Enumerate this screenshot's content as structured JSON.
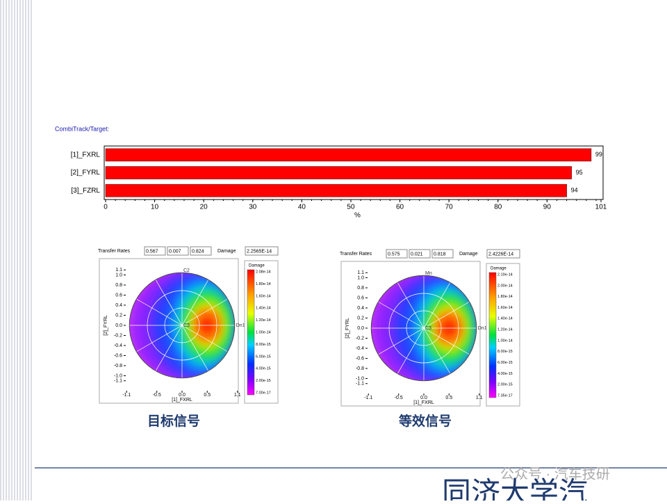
{
  "chart_data": [
    {
      "type": "bar",
      "title": "CombiTrack/Target:",
      "categories": [
        "[1]_FXRL",
        "[2]_FYRL",
        "[3]_FZRL"
      ],
      "values": [
        99,
        95,
        94
      ],
      "color": "#ff0000",
      "xlim": [
        0,
        101
      ],
      "xticks": [
        0,
        10,
        20,
        30,
        40,
        50,
        60,
        70,
        80,
        90,
        101
      ],
      "xlabel": "%"
    },
    {
      "type": "polar",
      "caption": "目标信号",
      "transfer_label": "Transfer Rates",
      "transfer_rates": [
        "0.567",
        "0.007",
        "0.824"
      ],
      "damage_label": "Damage",
      "damage": "2.2565E-14",
      "xlabel": "[1]_FXRL",
      "ylabel": "[2]_FYRL",
      "xticks": [
        {
          "value": -1.1,
          "label": "-1.1"
        },
        {
          "value": -0.5,
          "label": "-0.5"
        },
        {
          "value": 0,
          "label": "0.0"
        },
        {
          "value": 0.5,
          "label": "0.5"
        },
        {
          "value": 1.1,
          "label": "1.1"
        }
      ],
      "yticks": [
        {
          "value": 1.1,
          "label": "1.1"
        },
        {
          "value": 1,
          "label": "1.0"
        },
        {
          "value": 0.8,
          "label": "0.8"
        },
        {
          "value": 0.6,
          "label": "0.6"
        },
        {
          "value": 0.4,
          "label": "0.4"
        },
        {
          "value": 0.2,
          "label": "0.2"
        },
        {
          "value": 0,
          "label": "0.0"
        },
        {
          "value": -0.2,
          "label": "-0.2"
        },
        {
          "value": -0.4,
          "label": "-0.4"
        },
        {
          "value": -0.6,
          "label": "-0.6"
        },
        {
          "value": -0.8,
          "label": "-0.8"
        },
        {
          "value": -1,
          "label": "-1.0"
        },
        {
          "value": -1.1,
          "label": "-1.1"
        }
      ],
      "hotspot": [
        0.5,
        0
      ],
      "point_labels": [
        "C2",
        "C3",
        "Dn1"
      ],
      "colorbar_title": "Damage",
      "colorbar_labels": [
        "2.08e-14",
        "1.80e-14",
        "1.60e-14",
        "1.40e-14",
        "1.20e-14",
        "1.00e-14",
        "8.00e-15",
        "6.00e-15",
        "4.00e-15",
        "2.00e-15",
        "7.00e-17"
      ]
    },
    {
      "type": "polar",
      "caption": "等效信号",
      "transfer_label": "Transfer Rates",
      "transfer_rates": [
        "0.575",
        "0.021",
        "0.818"
      ],
      "damage_label": "Damage",
      "damage": "2.4226E-14",
      "xlabel": "[1]_FXRL",
      "ylabel": "[2]_FYRL",
      "xticks": [
        {
          "value": -1.1,
          "label": "-1.1"
        },
        {
          "value": -0.5,
          "label": "-0.5"
        },
        {
          "value": 0,
          "label": "0.0"
        },
        {
          "value": 0.5,
          "label": "0.5"
        },
        {
          "value": 1.1,
          "label": "1.1"
        }
      ],
      "yticks": [
        {
          "value": 1.1,
          "label": "1.1"
        },
        {
          "value": 1,
          "label": "1.0"
        },
        {
          "value": 0.8,
          "label": "0.8"
        },
        {
          "value": 0.6,
          "label": "0.6"
        },
        {
          "value": 0.4,
          "label": "0.4"
        },
        {
          "value": 0.2,
          "label": "0.2"
        },
        {
          "value": 0,
          "label": "0.0"
        },
        {
          "value": -0.2,
          "label": "-0.2"
        },
        {
          "value": -0.4,
          "label": "-0.4"
        },
        {
          "value": -0.6,
          "label": "-0.6"
        },
        {
          "value": -0.8,
          "label": "-0.8"
        },
        {
          "value": -1,
          "label": "-1.0"
        },
        {
          "value": -1.1,
          "label": "-1.1"
        }
      ],
      "hotspot": [
        0.5,
        0
      ],
      "point_labels": [
        "Mn",
        "C3",
        "Dn1"
      ],
      "colorbar_title": "Damage",
      "colorbar_labels": [
        "2.19e-14",
        "2.00e-14",
        "1.80e-14",
        "1.60e-14",
        "1.40e-14",
        "1.20e-14",
        "1.00e-14",
        "8.00e-15",
        "6.00e-15",
        "4.00e-15",
        "2.00e-15",
        "7.35e-17"
      ]
    }
  ],
  "footer": {
    "watermark": "公众号 · 汽车技研",
    "brand": "同济大学汽"
  }
}
